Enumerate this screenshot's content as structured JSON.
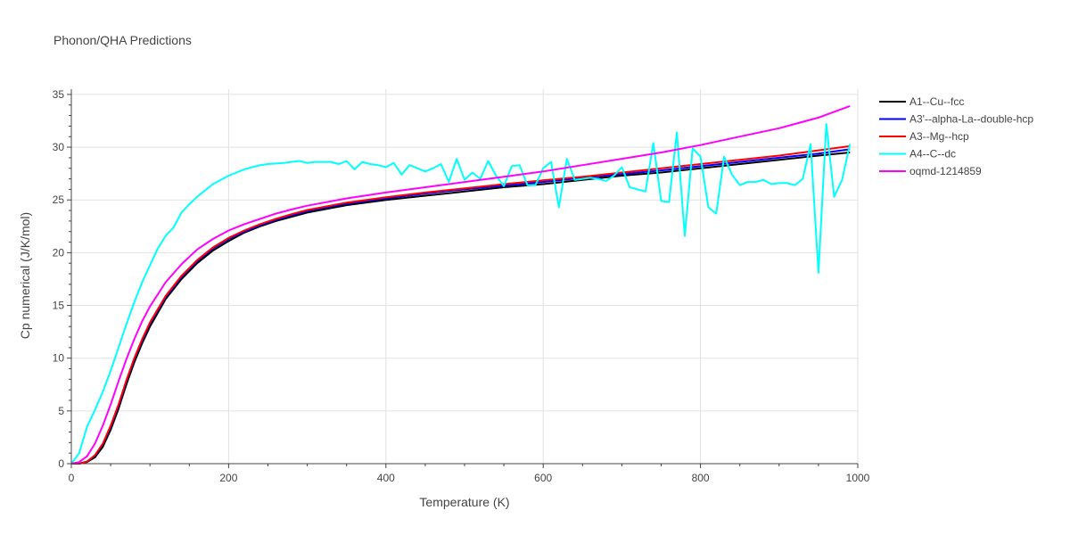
{
  "chart_data": {
    "type": "line",
    "title": "Phonon/QHA Predictions",
    "xlabel": "Temperature (K)",
    "ylabel": "Cp numerical (J/K/mol)",
    "xlim": [
      0,
      1000
    ],
    "ylim": [
      0,
      35.5
    ],
    "xticks": [
      0,
      200,
      400,
      600,
      800,
      1000
    ],
    "yticks": [
      0,
      5,
      10,
      15,
      20,
      25,
      30,
      35
    ],
    "grid": true,
    "legend_position": "top-right",
    "series": [
      {
        "name": "A1--Cu--fcc",
        "color": "#000000",
        "x": [
          0,
          10,
          20,
          30,
          40,
          50,
          60,
          70,
          80,
          90,
          100,
          120,
          140,
          160,
          180,
          200,
          220,
          240,
          260,
          280,
          300,
          350,
          400,
          450,
          500,
          550,
          600,
          650,
          700,
          750,
          800,
          850,
          900,
          950,
          990
        ],
        "y": [
          0,
          0,
          0.15,
          0.6,
          1.6,
          3.2,
          5.2,
          7.5,
          9.6,
          11.4,
          13.0,
          15.6,
          17.5,
          19.0,
          20.2,
          21.1,
          21.9,
          22.5,
          23.0,
          23.4,
          23.8,
          24.5,
          25.0,
          25.4,
          25.8,
          26.2,
          26.5,
          26.9,
          27.3,
          27.6,
          28.0,
          28.4,
          28.8,
          29.2,
          29.5
        ]
      },
      {
        "name": "A3'--alpha-La--double-hcp",
        "color": "#0000ff",
        "x": [
          0,
          10,
          20,
          30,
          40,
          50,
          60,
          70,
          80,
          90,
          100,
          120,
          140,
          160,
          180,
          200,
          220,
          240,
          260,
          280,
          300,
          350,
          400,
          450,
          500,
          550,
          600,
          650,
          700,
          750,
          800,
          850,
          900,
          950,
          990
        ],
        "y": [
          0,
          0,
          0.2,
          0.75,
          1.85,
          3.5,
          5.5,
          7.8,
          9.9,
          11.7,
          13.3,
          15.8,
          17.7,
          19.2,
          20.4,
          21.3,
          22.0,
          22.6,
          23.1,
          23.55,
          23.95,
          24.65,
          25.15,
          25.6,
          26.0,
          26.35,
          26.7,
          27.1,
          27.45,
          27.8,
          28.2,
          28.6,
          29.0,
          29.4,
          29.8
        ]
      },
      {
        "name": "A3--Mg--hcp",
        "color": "#ff0000",
        "x": [
          0,
          10,
          20,
          30,
          40,
          50,
          60,
          70,
          80,
          90,
          100,
          120,
          140,
          160,
          180,
          200,
          220,
          240,
          260,
          280,
          300,
          350,
          400,
          450,
          500,
          550,
          600,
          650,
          700,
          750,
          800,
          850,
          900,
          950,
          990
        ],
        "y": [
          0,
          0,
          0.2,
          0.8,
          1.9,
          3.6,
          5.6,
          7.9,
          10.0,
          11.8,
          13.4,
          15.9,
          17.8,
          19.3,
          20.5,
          21.4,
          22.1,
          22.7,
          23.2,
          23.65,
          24.05,
          24.75,
          25.25,
          25.7,
          26.1,
          26.5,
          26.85,
          27.2,
          27.6,
          28.0,
          28.4,
          28.8,
          29.2,
          29.7,
          30.1
        ]
      },
      {
        "name": "A4--C--dc",
        "color": "#00ffff",
        "x": [
          0,
          10,
          20,
          30,
          40,
          50,
          60,
          70,
          80,
          90,
          100,
          110,
          120,
          130,
          140,
          150,
          160,
          170,
          180,
          190,
          200,
          210,
          220,
          230,
          240,
          250,
          260,
          270,
          280,
          290,
          300,
          310,
          320,
          330,
          340,
          350,
          360,
          370,
          380,
          390,
          400,
          410,
          420,
          430,
          440,
          450,
          460,
          470,
          480,
          490,
          500,
          510,
          520,
          530,
          540,
          550,
          560,
          570,
          580,
          590,
          600,
          610,
          620,
          630,
          640,
          650,
          660,
          670,
          680,
          690,
          700,
          710,
          720,
          730,
          740,
          750,
          760,
          770,
          780,
          790,
          800,
          810,
          820,
          830,
          840,
          850,
          860,
          870,
          880,
          890,
          900,
          910,
          920,
          930,
          940,
          950,
          960,
          970,
          980,
          990
        ],
        "y": [
          0,
          1.0,
          3.5,
          5.1,
          6.8,
          8.8,
          11.0,
          13.2,
          15.3,
          17.2,
          18.8,
          20.4,
          21.6,
          22.4,
          23.8,
          24.6,
          25.3,
          25.9,
          26.5,
          26.9,
          27.3,
          27.6,
          27.9,
          28.1,
          28.3,
          28.4,
          28.45,
          28.5,
          28.6,
          28.7,
          28.5,
          28.6,
          28.6,
          28.6,
          28.4,
          28.7,
          27.9,
          28.6,
          28.4,
          28.3,
          28.1,
          28.5,
          27.4,
          28.3,
          28.0,
          27.7,
          28.0,
          28.4,
          26.7,
          28.9,
          26.9,
          27.6,
          27.0,
          28.7,
          27.3,
          26.3,
          28.2,
          28.3,
          26.4,
          26.4,
          28.0,
          28.6,
          24.3,
          28.9,
          26.9,
          27.0,
          27.1,
          27.0,
          26.8,
          27.3,
          28.1,
          26.2,
          26.0,
          25.8,
          30.4,
          24.9,
          24.8,
          31.4,
          21.6,
          29.9,
          29.1,
          24.3,
          23.7,
          29.1,
          27.4,
          26.4,
          26.7,
          26.7,
          26.9,
          26.5,
          26.6,
          26.6,
          26.4,
          27.0,
          30.3,
          18.1,
          32.2,
          25.3,
          26.9,
          30.3
        ]
      },
      {
        "name": "oqmd-1214859",
        "color": "#ff00ff",
        "x": [
          0,
          10,
          20,
          30,
          40,
          50,
          60,
          70,
          80,
          90,
          100,
          120,
          140,
          160,
          180,
          200,
          220,
          240,
          260,
          280,
          300,
          350,
          400,
          450,
          500,
          550,
          600,
          650,
          700,
          750,
          800,
          850,
          900,
          950,
          990
        ],
        "y": [
          0,
          0.15,
          0.7,
          1.9,
          3.6,
          5.6,
          7.8,
          9.9,
          11.8,
          13.5,
          14.9,
          17.2,
          18.9,
          20.3,
          21.3,
          22.1,
          22.7,
          23.2,
          23.7,
          24.1,
          24.45,
          25.15,
          25.7,
          26.2,
          26.7,
          27.2,
          27.7,
          28.3,
          28.9,
          29.5,
          30.2,
          31.0,
          31.8,
          32.8,
          33.9
        ]
      }
    ]
  }
}
